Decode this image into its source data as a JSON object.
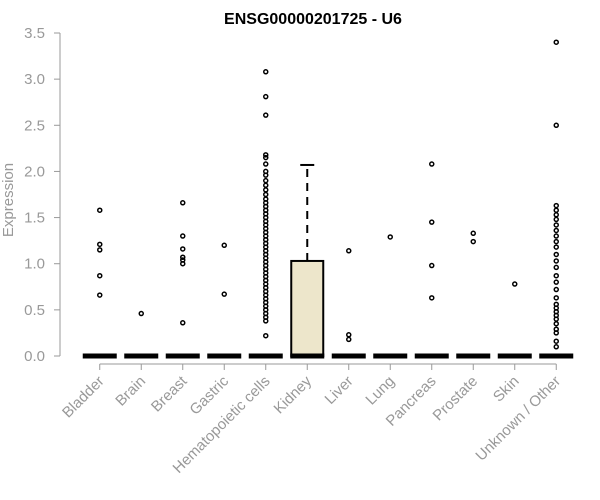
{
  "chart_data": {
    "type": "box",
    "title": "ENSG00000201725 - U6",
    "xlabel": "",
    "ylabel": "Expression",
    "ylim": [
      0,
      3.5
    ],
    "yticks": [
      "0.0",
      "0.5",
      "1.0",
      "1.5",
      "2.0",
      "2.5",
      "3.0",
      "3.5"
    ],
    "grid": false,
    "box_fill": "#ede6cb",
    "categories": [
      "Bladder",
      "Brain",
      "Breast",
      "Gastric",
      "Hematopoietic cells",
      "Kidney",
      "Liver",
      "Lung",
      "Pancreas",
      "Prostate",
      "Skin",
      "Unknown / Other"
    ],
    "boxes": [
      {
        "category": "Bladder",
        "q1": 0,
        "median": 0,
        "q3": 0,
        "whisker_low": 0,
        "whisker_high": 0,
        "outliers": [
          1.58,
          1.21,
          1.15,
          0.87,
          0.66
        ]
      },
      {
        "category": "Brain",
        "q1": 0,
        "median": 0,
        "q3": 0,
        "whisker_low": 0,
        "whisker_high": 0,
        "outliers": [
          0.46
        ]
      },
      {
        "category": "Breast",
        "q1": 0,
        "median": 0,
        "q3": 0,
        "whisker_low": 0,
        "whisker_high": 0,
        "outliers": [
          1.66,
          1.3,
          1.16,
          1.07,
          1.04,
          1.0,
          0.36
        ]
      },
      {
        "category": "Gastric",
        "q1": 0,
        "median": 0,
        "q3": 0,
        "whisker_low": 0,
        "whisker_high": 0,
        "outliers": [
          1.2,
          0.67
        ]
      },
      {
        "category": "Hematopoietic cells",
        "q1": 0,
        "median": 0,
        "q3": 0,
        "whisker_low": 0,
        "whisker_high": 0,
        "outliers": [
          3.08,
          2.81,
          2.61,
          2.18,
          2.15,
          2.08,
          2.0,
          1.96,
          1.9,
          1.85,
          1.8,
          1.75,
          1.7,
          1.66,
          1.62,
          1.58,
          1.54,
          1.5,
          1.46,
          1.42,
          1.38,
          1.34,
          1.3,
          1.26,
          1.22,
          1.18,
          1.14,
          1.1,
          1.06,
          1.02,
          0.98,
          0.94,
          0.9,
          0.86,
          0.82,
          0.78,
          0.74,
          0.7,
          0.66,
          0.62,
          0.58,
          0.54,
          0.5,
          0.46,
          0.42,
          0.38,
          0.22
        ]
      },
      {
        "category": "Kidney",
        "q1": 0,
        "median": 0,
        "q3": 1.03,
        "whisker_low": 0,
        "whisker_high": 2.07,
        "outliers": []
      },
      {
        "category": "Liver",
        "q1": 0,
        "median": 0,
        "q3": 0,
        "whisker_low": 0,
        "whisker_high": 0,
        "outliers": [
          1.14,
          0.23,
          0.18
        ]
      },
      {
        "category": "Lung",
        "q1": 0,
        "median": 0,
        "q3": 0,
        "whisker_low": 0,
        "whisker_high": 0,
        "outliers": [
          1.29
        ]
      },
      {
        "category": "Pancreas",
        "q1": 0,
        "median": 0,
        "q3": 0,
        "whisker_low": 0,
        "whisker_high": 0,
        "outliers": [
          2.08,
          1.45,
          0.98,
          0.63
        ]
      },
      {
        "category": "Prostate",
        "q1": 0,
        "median": 0,
        "q3": 0,
        "whisker_low": 0,
        "whisker_high": 0,
        "outliers": [
          1.33,
          1.24
        ]
      },
      {
        "category": "Skin",
        "q1": 0,
        "median": 0,
        "q3": 0,
        "whisker_low": 0,
        "whisker_high": 0,
        "outliers": [
          0.78
        ]
      },
      {
        "category": "Unknown / Other",
        "q1": 0,
        "median": 0,
        "q3": 0,
        "whisker_low": 0,
        "whisker_high": 0,
        "outliers": [
          3.4,
          2.5,
          1.63,
          1.58,
          1.53,
          1.48,
          1.42,
          1.36,
          1.3,
          1.24,
          1.18,
          1.1,
          1.03,
          0.96,
          0.87,
          0.8,
          0.72,
          0.63,
          0.56,
          0.52,
          0.48,
          0.44,
          0.4,
          0.35,
          0.29,
          0.25,
          0.16,
          0.1
        ]
      }
    ]
  }
}
